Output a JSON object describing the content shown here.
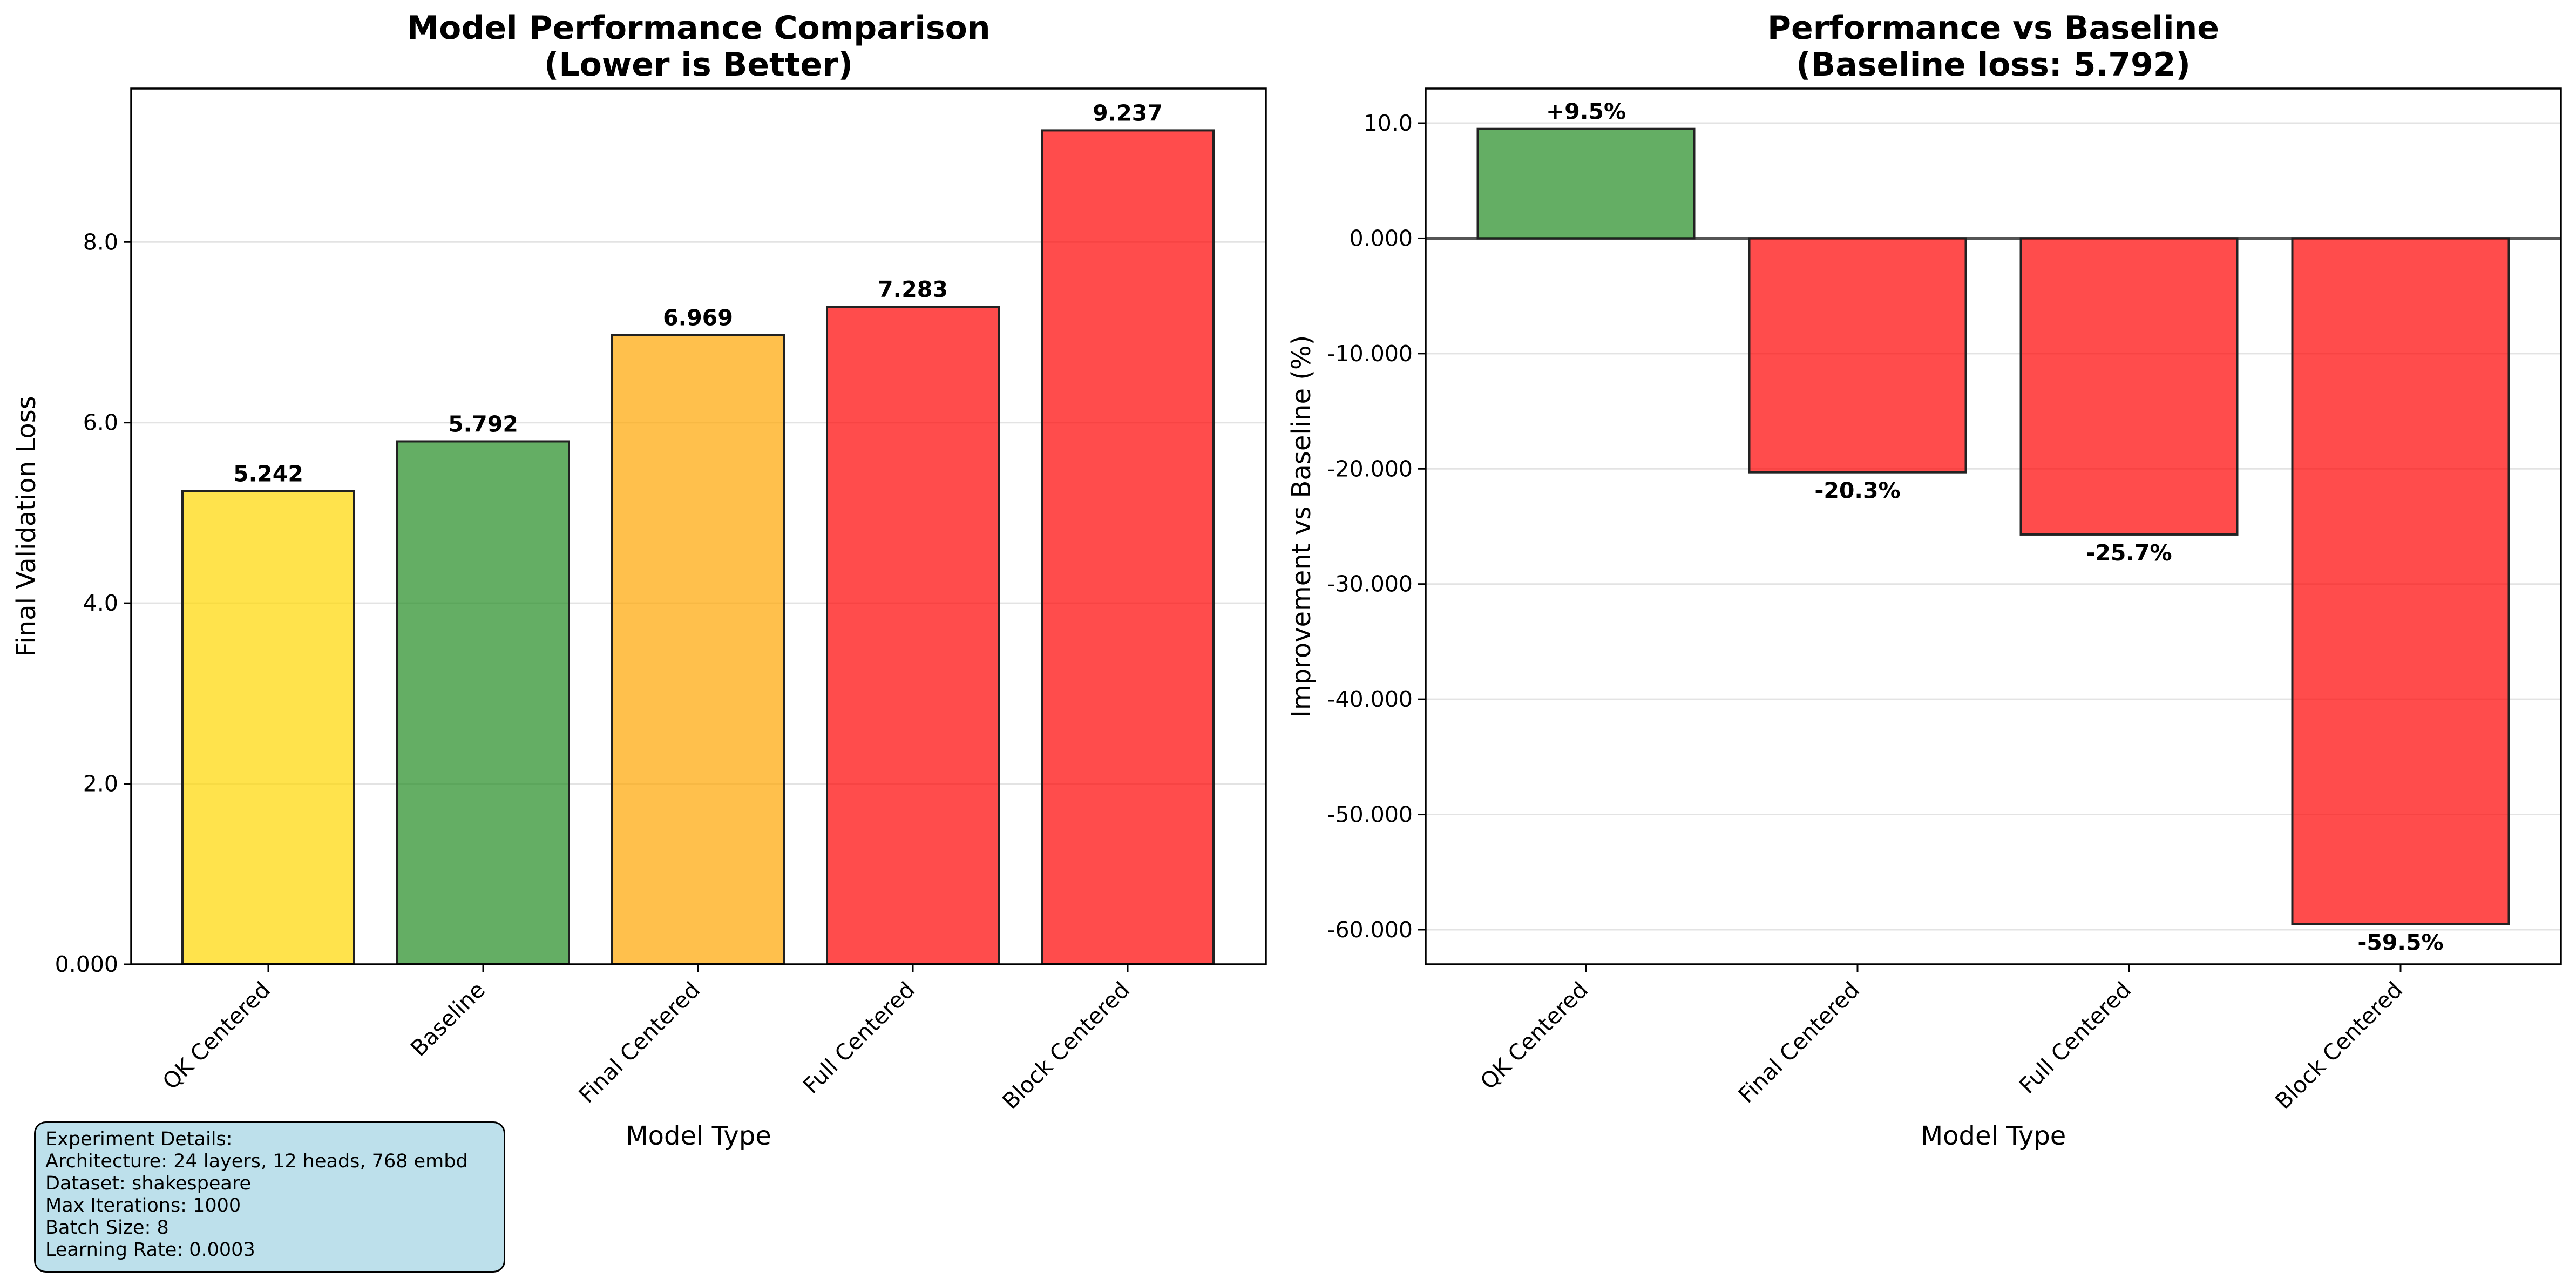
{
  "colors": {
    "best": "#ffd700",
    "baseline": "#228b22",
    "moderate": "#ffa500",
    "worse": "#ff0000",
    "best_edge": "#daa520",
    "improvement_positive": "#228b22",
    "improvement_negative": "#ff0000",
    "info_box_bg": "#add8e6"
  },
  "chart_data": [
    {
      "type": "bar",
      "title": "Model Performance Comparison\n(Lower is Better)",
      "title_lines": [
        "Model Performance Comparison",
        "(Lower is Better)"
      ],
      "xlabel": "Model Type",
      "ylabel": "Final Validation Loss",
      "categories": [
        "QK Centered",
        "Baseline",
        "Final Centered",
        "Full Centered",
        "Block Centered"
      ],
      "values": [
        5.242,
        5.792,
        6.969,
        7.283,
        9.237
      ],
      "value_labels": [
        "5.242",
        "5.792",
        "6.969",
        "7.283",
        "9.237"
      ],
      "bar_colors": [
        "best",
        "baseline",
        "moderate",
        "worse",
        "worse"
      ],
      "highlight_best": true,
      "ylim": [
        0,
        9.7
      ],
      "yticks": [
        0,
        2,
        4,
        6,
        8
      ],
      "ytick_labels": [
        "0.000",
        "2.0",
        "4.0",
        "6.0",
        "8.0"
      ],
      "grid": "y",
      "legend": "none"
    },
    {
      "type": "bar",
      "title": "Performance vs Baseline\n(Baseline loss: 5.792)",
      "title_lines": [
        "Performance vs Baseline",
        "(Baseline loss: 5.792)"
      ],
      "xlabel": "Model Type",
      "ylabel": "Improvement vs Baseline (%)",
      "categories": [
        "QK Centered",
        "Final Centered",
        "Full Centered",
        "Block Centered"
      ],
      "values": [
        9.5,
        -20.3,
        -25.7,
        -59.5
      ],
      "value_labels": [
        "+9.5%",
        "-20.3%",
        "-25.7%",
        "-59.5%"
      ],
      "ylim": [
        -63,
        13
      ],
      "yticks": [
        10,
        0,
        -10,
        -20,
        -30,
        -40,
        -50,
        -60
      ],
      "ytick_labels": [
        "10.0",
        "0.000",
        "-10.000",
        "-20.000",
        "-30.000",
        "-40.000",
        "-50.000",
        "-60.000"
      ],
      "reference_line": 0,
      "grid": "y",
      "legend": "none"
    }
  ],
  "experiment_details": {
    "lines": [
      "Experiment Details:",
      "Architecture: 24 layers, 12 heads, 768 embd",
      "Dataset: shakespeare",
      "Max Iterations: 1000",
      "Batch Size: 8",
      "Learning Rate: 0.0003"
    ]
  }
}
